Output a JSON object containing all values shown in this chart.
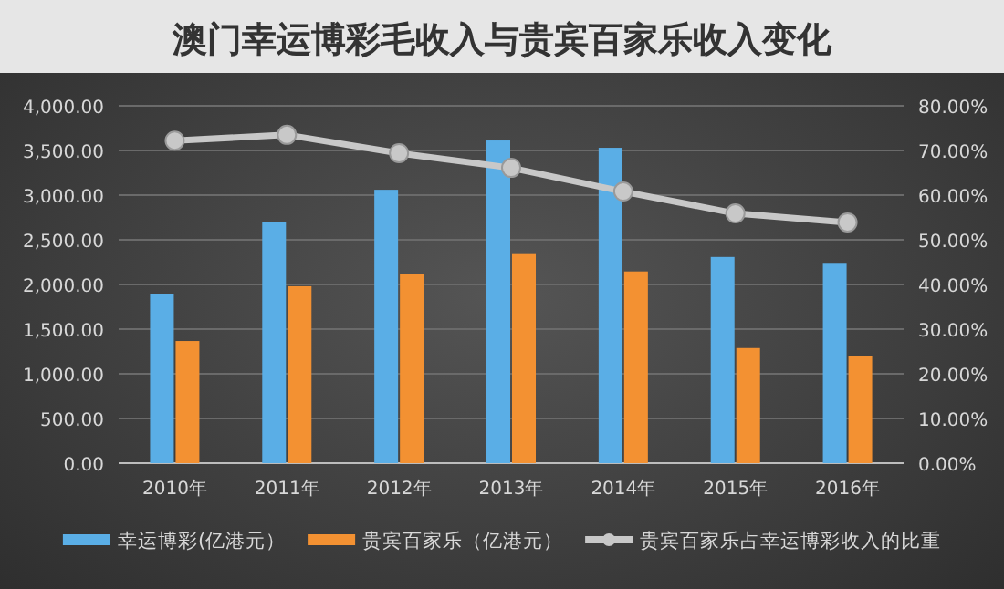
{
  "chart_data": {
    "type": "bar",
    "title": "澳门幸运博彩毛收入与贵宾百家乐收入变化",
    "categories": [
      "2010年",
      "2011年",
      "2012年",
      "2013年",
      "2014年",
      "2015年",
      "2016年"
    ],
    "series": [
      {
        "name": "幸运博彩(亿港元）",
        "color": "#5aaee6",
        "values": [
          1895,
          2695,
          3060,
          3612,
          3530,
          2308,
          2232
        ]
      },
      {
        "name": "贵宾百家乐（亿港元）",
        "color": "#f39132",
        "values": [
          1367,
          1980,
          2122,
          2340,
          2146,
          1288,
          1200
        ]
      },
      {
        "name": "贵宾百家乐占幸运博彩收入的比重",
        "type": "line",
        "axis": "y2",
        "color": "#c8c8c8",
        "marker": "circle",
        "values": [
          72.2,
          73.5,
          69.4,
          66.1,
          60.8,
          55.9,
          53.9
        ]
      }
    ],
    "ylim": [
      0,
      4000
    ],
    "yticks": [
      {
        "value": 0,
        "label": "0.00"
      },
      {
        "value": 500,
        "label": "500.00"
      },
      {
        "value": 1000,
        "label": "1,000.00"
      },
      {
        "value": 1500,
        "label": "1,500.00"
      },
      {
        "value": 2000,
        "label": "2,000.00"
      },
      {
        "value": 2500,
        "label": "2,500.00"
      },
      {
        "value": 3000,
        "label": "3,000.00"
      },
      {
        "value": 3500,
        "label": "3,500.00"
      },
      {
        "value": 4000,
        "label": "4,000.00"
      }
    ],
    "y2lim": [
      0,
      80
    ],
    "y2ticks": [
      {
        "value": 0,
        "label": "0.00%"
      },
      {
        "value": 10,
        "label": "10.00%"
      },
      {
        "value": 20,
        "label": "20.00%"
      },
      {
        "value": 30,
        "label": "30.00%"
      },
      {
        "value": 40,
        "label": "40.00%"
      },
      {
        "value": 50,
        "label": "50.00%"
      },
      {
        "value": 60,
        "label": "60.00%"
      },
      {
        "value": 70,
        "label": "70.00%"
      },
      {
        "value": 80,
        "label": "80.00%"
      }
    ],
    "grid": "y",
    "legend": "bottom"
  }
}
